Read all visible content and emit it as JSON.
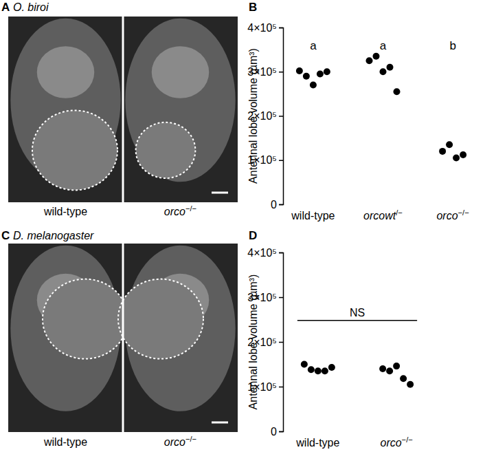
{
  "images": [
    {
      "letter": "A",
      "species": "O. biroi",
      "labels": [
        "wild-type",
        "orco−/−"
      ]
    },
    {
      "letter": "C",
      "species": "D. melanogaster",
      "labels": [
        "wild-type",
        "orco−/−"
      ]
    }
  ],
  "chart_data": [
    {
      "type": "strip",
      "panel": "B",
      "categories": [
        "wild-type",
        "orcowt/−",
        "orco−/−"
      ],
      "values": [
        [
          302000,
          290000,
          270000,
          295000,
          300000
        ],
        [
          325000,
          335000,
          300000,
          310000,
          255000
        ],
        [
          120000,
          135000,
          105000,
          112000
        ]
      ],
      "annotations": [
        "a",
        "a",
        "b"
      ],
      "ylabel": "Antennal lobe volume (µm³)",
      "ylim": [
        0,
        400000
      ],
      "yticks": [
        0,
        {
          "value": 100000,
          "label": "1×10⁵"
        },
        {
          "value": 200000,
          "label": "2×10⁵"
        },
        {
          "value": 300000,
          "label": "3×10⁵"
        },
        {
          "value": 400000,
          "label": "4×10⁵"
        }
      ],
      "color": "#000000",
      "marker": "circle"
    },
    {
      "type": "strip",
      "panel": "D",
      "categories": [
        "wild-type",
        "orco−/−"
      ],
      "values": [
        [
          150000,
          138000,
          135000,
          135000,
          143000
        ],
        [
          140000,
          135000,
          146000,
          118000,
          105000
        ]
      ],
      "annotations": [
        "NS"
      ],
      "ylabel": "Antennal lobe volume (µm³)",
      "ylim": [
        0,
        400000
      ],
      "yticks": [
        0,
        {
          "value": 100000,
          "label": "1×10⁵"
        },
        {
          "value": 200000,
          "label": "2×10⁵"
        },
        {
          "value": 300000,
          "label": "3×10⁵"
        },
        {
          "value": 400000,
          "label": "4×10⁵"
        }
      ],
      "color": "#000000",
      "marker": "circle"
    }
  ]
}
